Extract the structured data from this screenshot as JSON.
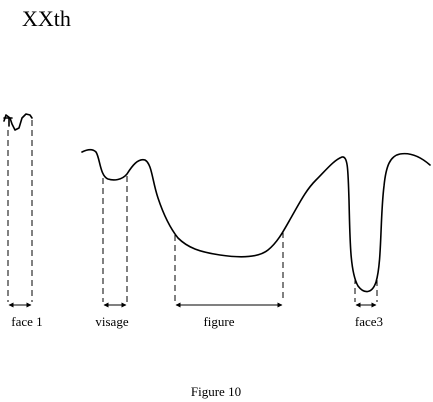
{
  "header": {
    "title": "XXth"
  },
  "labels": [
    "face 1",
    "visage",
    "figure",
    "face3"
  ],
  "caption": "Figure 10"
}
